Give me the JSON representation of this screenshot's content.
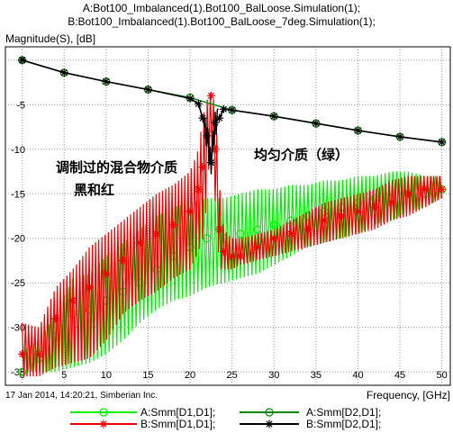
{
  "header": {
    "line1": "A:Bot100_Imbalanced(1).Bot100_BalLoose.Simulation(1);",
    "line2": "B:Bot100_Imbalanced(1).Bot100_BalLoose_7deg.Simulation(1);"
  },
  "footer": {
    "timestamp": "17 Jan 2014, 14:20:21, Simberian Inc."
  },
  "annotations": {
    "mixed_medium_line1": "调制过的混合物介质",
    "mixed_medium_line2": "黑和红",
    "uniform_medium": "均匀介质（绿）"
  },
  "colors": {
    "A_Smm_D1D1": "#00ee00",
    "B_Smm_D1D1": "#ee0000",
    "A_Smm_D2D1": "#008800",
    "B_Smm_D2D1": "#000000",
    "grid": "#9a9a9a",
    "background": "#ffffff"
  },
  "chart_data": {
    "type": "line",
    "title": "",
    "ylabel": "Magnitude(S), [dB]",
    "xlabel": "Frequency, [GHz]",
    "xlim": [
      -2,
      51
    ],
    "ylim": [
      -36.5,
      1.5
    ],
    "xticks": [
      0,
      5,
      10,
      15,
      20,
      25,
      30,
      35,
      40,
      45,
      50
    ],
    "yticks": [
      0,
      -5,
      -10,
      -15,
      -20,
      -25,
      -30,
      -35
    ],
    "grid": true,
    "legend_placement": "bottom",
    "series": [
      {
        "name": "A:Smm[D1,D1];",
        "color": "#00ee00",
        "marker": "circle",
        "x": [
          0,
          2,
          4,
          6,
          8,
          10,
          12,
          14,
          16,
          18,
          20,
          22,
          24,
          26,
          28,
          30,
          32,
          34,
          36,
          38,
          40,
          42,
          44,
          46,
          48,
          50
        ],
        "y": [
          -35,
          -33.5,
          -31,
          -28.5,
          -28,
          -27,
          -26,
          -25,
          -23.5,
          -22,
          -21,
          -20,
          -20,
          -19.5,
          -19,
          -18.5,
          -18,
          -17.5,
          -17,
          -16.5,
          -16,
          -15.5,
          -15.5,
          -15,
          -15,
          -14.5
        ],
        "min": [
          -35,
          -35,
          -35,
          -34.5,
          -34,
          -33,
          -31.5,
          -29.5,
          -28,
          -27,
          -26.5,
          -25.5,
          -25,
          -24.5,
          -24,
          -23,
          -22,
          -21,
          -20.5,
          -20,
          -19.5,
          -18.5,
          -18,
          -17,
          -16.5,
          -15.5
        ],
        "max": [
          -32.5,
          -31.5,
          -28.5,
          -24.5,
          -24,
          -22,
          -20.5,
          -19,
          -17.5,
          -16.5,
          -16,
          -15.5,
          -15.5,
          -15,
          -14.5,
          -14.5,
          -14,
          -14,
          -13.5,
          -13.5,
          -13,
          -13,
          -12.5,
          -12.5,
          -13,
          -13
        ]
      },
      {
        "name": "B:Smm[D1,D1];",
        "color": "#ee0000",
        "marker": "star",
        "x": [
          0,
          2,
          4,
          6,
          8,
          10,
          12,
          14,
          16,
          18,
          20,
          21,
          21.5,
          22,
          22.5,
          23,
          23.5,
          24,
          25,
          26,
          28,
          30,
          32,
          34,
          36,
          38,
          40,
          42,
          44,
          46,
          48,
          50
        ],
        "y": [
          -33,
          -33,
          -29,
          -27,
          -25.5,
          -24,
          -22.5,
          -20.5,
          -19.5,
          -18.5,
          -17,
          -14.5,
          -12,
          -8,
          -4,
          -10,
          -19,
          -21.5,
          -22,
          -22,
          -21,
          -20,
          -19.5,
          -19,
          -18,
          -17.5,
          -17,
          -16.5,
          -16,
          -15,
          -14.5,
          -14.5
        ],
        "min": [
          -35.5,
          -35.5,
          -34.5,
          -34,
          -33.5,
          -31.5,
          -28.5,
          -27,
          -26,
          -24.5,
          -23.5,
          -21.5,
          -20,
          -16,
          -8,
          -16,
          -23.5,
          -23.5,
          -23.5,
          -23,
          -22.5,
          -22,
          -21.5,
          -21,
          -20.5,
          -20,
          -19.5,
          -19,
          -18,
          -17.5,
          -16.5,
          -15.5
        ],
        "max": [
          -29.5,
          -30,
          -25.5,
          -23.5,
          -21,
          -19.5,
          -18,
          -16.5,
          -15,
          -14,
          -12.5,
          -10,
          -6.5,
          -4.5,
          -3.5,
          -5,
          -14,
          -19,
          -20,
          -20,
          -19.5,
          -19,
          -18,
          -17,
          -16,
          -15.5,
          -15,
          -14.5,
          -13.5,
          -13,
          -13,
          -13
        ]
      },
      {
        "name": "A:Smm[D2,D1];",
        "color": "#008800",
        "marker": "circle",
        "x": [
          0,
          5,
          10,
          15,
          20,
          25,
          30,
          35,
          40,
          45,
          50
        ],
        "y": [
          0,
          -1.4,
          -2.4,
          -3.3,
          -4.2,
          -5.6,
          -6.3,
          -7.1,
          -7.9,
          -8.6,
          -9.2
        ]
      },
      {
        "name": "B:Smm[D2,D1];",
        "color": "#000000",
        "marker": "star",
        "x": [
          0,
          5,
          10,
          15,
          20,
          21,
          21.5,
          22,
          22.5,
          23,
          23.5,
          24,
          25,
          30,
          35,
          40,
          45,
          50
        ],
        "y": [
          0,
          -1.4,
          -2.4,
          -3.3,
          -4.3,
          -4.9,
          -6.5,
          -8.5,
          -11.5,
          -7,
          -6.5,
          -5.5,
          -5.6,
          -6.3,
          -7.1,
          -7.9,
          -8.6,
          -9.2
        ]
      }
    ]
  }
}
